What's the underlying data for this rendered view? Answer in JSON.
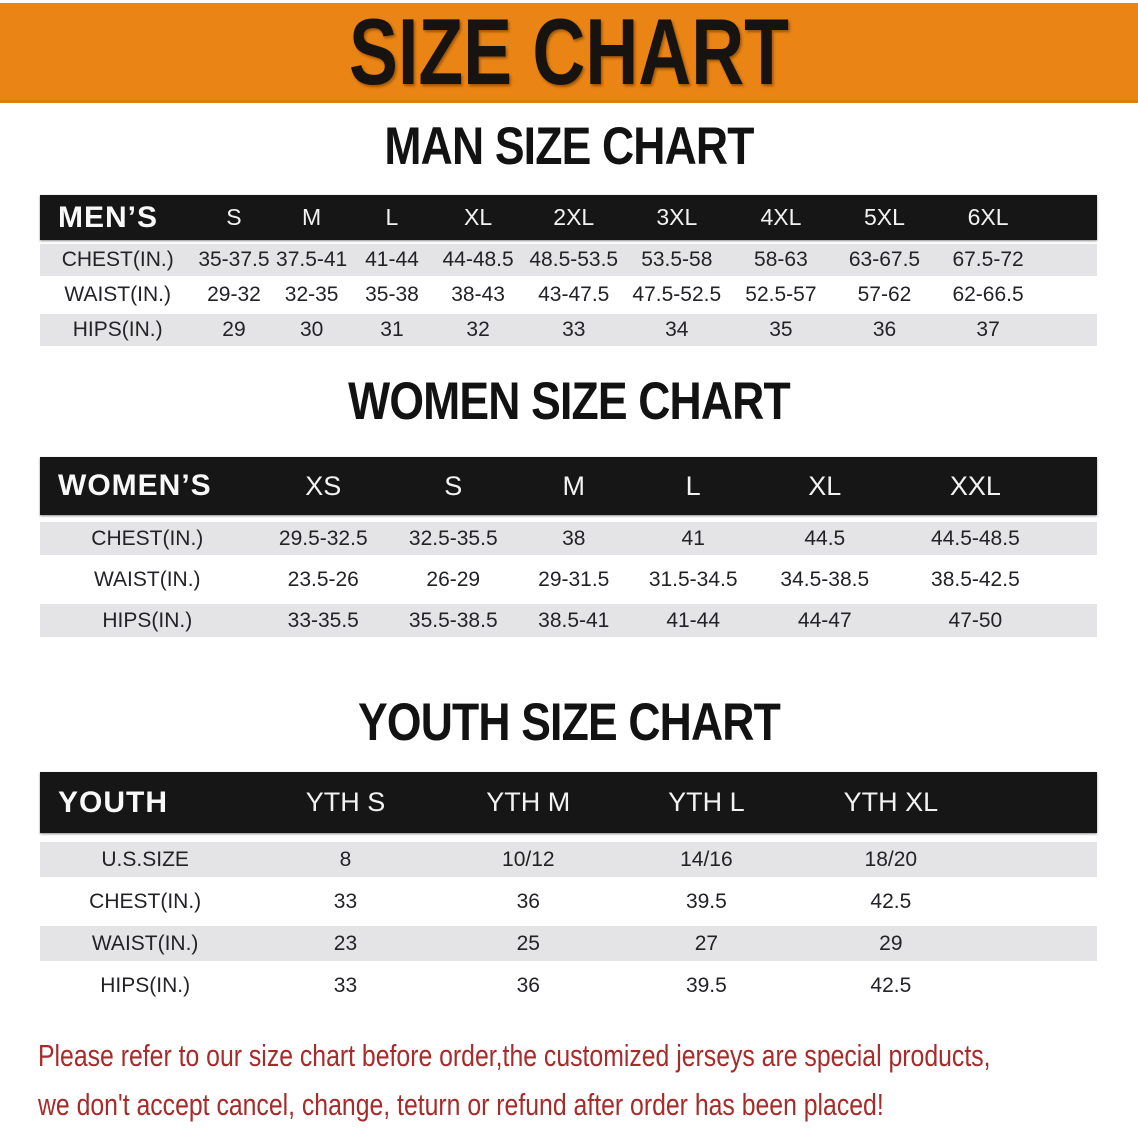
{
  "banner": {
    "title": "SIZE CHART"
  },
  "sections": [
    {
      "id": "men",
      "heading": "MAN SIZE CHART",
      "header_label": "MEN’S",
      "columns": [
        "S",
        "M",
        "L",
        "XL",
        "2XL",
        "3XL",
        "4XL",
        "5XL",
        "6XL"
      ],
      "rows": [
        {
          "label": "CHEST(IN.)",
          "values": [
            "35-37.5",
            "37.5-41",
            "41-44",
            "44-48.5",
            "48.5-53.5",
            "53.5-58",
            "58-63",
            "63-67.5",
            "67.5-72"
          ]
        },
        {
          "label": "WAIST(IN.)",
          "values": [
            "29-32",
            "32-35",
            "35-38",
            "38-43",
            "43-47.5",
            "47.5-52.5",
            "52.5-57",
            "57-62",
            "62-66.5"
          ]
        },
        {
          "label": "HIPS(IN.)",
          "values": [
            "29",
            "30",
            "31",
            "32",
            "33",
            "34",
            "35",
            "36",
            "37"
          ]
        }
      ]
    },
    {
      "id": "women",
      "heading": "WOMEN SIZE CHART",
      "header_label": "WOMEN’S",
      "columns": [
        "XS",
        "S",
        "M",
        "L",
        "XL",
        "XXL"
      ],
      "rows": [
        {
          "label": "CHEST(IN.)",
          "values": [
            "29.5-32.5",
            "32.5-35.5",
            "38",
            "41",
            "44.5",
            "44.5-48.5"
          ]
        },
        {
          "label": "WAIST(IN.)",
          "values": [
            "23.5-26",
            "26-29",
            "29-31.5",
            "31.5-34.5",
            "34.5-38.5",
            "38.5-42.5"
          ]
        },
        {
          "label": "HIPS(IN.)",
          "values": [
            "33-35.5",
            "35.5-38.5",
            "38.5-41",
            "41-44",
            "44-47",
            "47-50"
          ]
        }
      ]
    },
    {
      "id": "youth",
      "heading": "YOUTH SIZE CHART",
      "header_label": "YOUTH",
      "columns": [
        "YTH S",
        "YTH M",
        "YTH L",
        "YTH XL"
      ],
      "rows": [
        {
          "label": "U.S.SIZE",
          "values": [
            "8",
            "10/12",
            "14/16",
            "18/20"
          ]
        },
        {
          "label": "CHEST(IN.)",
          "values": [
            "33",
            "36",
            "39.5",
            "42.5"
          ]
        },
        {
          "label": "WAIST(IN.)",
          "values": [
            "23",
            "25",
            "27",
            "29"
          ]
        },
        {
          "label": "HIPS(IN.)",
          "values": [
            "33",
            "36",
            "39.5",
            "42.5"
          ]
        }
      ]
    }
  ],
  "footer": {
    "line1": "Please refer to our size chart before order,the customized jerseys are special products,",
    "line2": "we don't accept cancel, change, teturn or refund after order has been placed!"
  },
  "colors": {
    "banner_bg": "#EA8414",
    "header_bar": "#161616",
    "row_gray": "#E4E4E6",
    "footer_red": "#A82B2B"
  }
}
